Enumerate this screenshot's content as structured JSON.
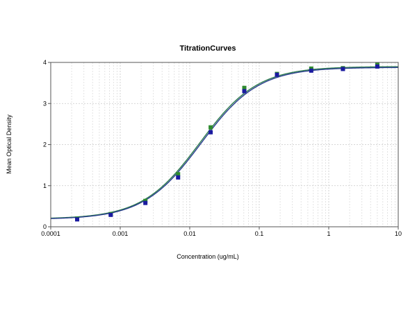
{
  "chart_data": {
    "type": "scatter",
    "title": "TitrationCurves",
    "xlabel": "Concentration (ug/mL)",
    "ylabel": "Mean Optical Density",
    "xscale": "log",
    "xlim": [
      0.0001,
      10
    ],
    "ylim": [
      0,
      4
    ],
    "x_ticks": [
      0.0001,
      0.001,
      0.01,
      0.1,
      1,
      10
    ],
    "x_tick_labels": [
      "0.0001",
      "0.001",
      "0.01",
      "0.1",
      "1",
      "10"
    ],
    "y_ticks": [
      0,
      1,
      2,
      3,
      4
    ],
    "y_tick_labels": [
      "0",
      "1",
      "2",
      "3",
      "4"
    ],
    "grid": true,
    "legend": "none",
    "series": [
      {
        "color": "#2e8b2e",
        "marker": "square",
        "x": [
          0.00024,
          0.00073,
          0.0023,
          0.0068,
          0.02,
          0.061,
          0.18,
          0.56,
          1.6,
          5.0
        ],
        "y": [
          0.2,
          0.31,
          0.63,
          1.28,
          2.42,
          3.38,
          3.72,
          3.85,
          3.86,
          3.95
        ]
      },
      {
        "color": "#1a1aa0",
        "marker": "square",
        "x": [
          0.00024,
          0.00073,
          0.0023,
          0.0068,
          0.02,
          0.061,
          0.18,
          0.56,
          1.6,
          5.0
        ],
        "y": [
          0.18,
          0.29,
          0.58,
          1.2,
          2.3,
          3.3,
          3.7,
          3.8,
          3.84,
          3.9
        ]
      }
    ],
    "fits": [
      {
        "color": "#2e7d4f",
        "bottom": 0.19,
        "top": 3.9,
        "ec50": 0.014,
        "hill": 1.05
      },
      {
        "color": "#2a3d8f",
        "bottom": 0.18,
        "top": 3.88,
        "ec50": 0.0145,
        "hill": 1.05
      }
    ]
  }
}
